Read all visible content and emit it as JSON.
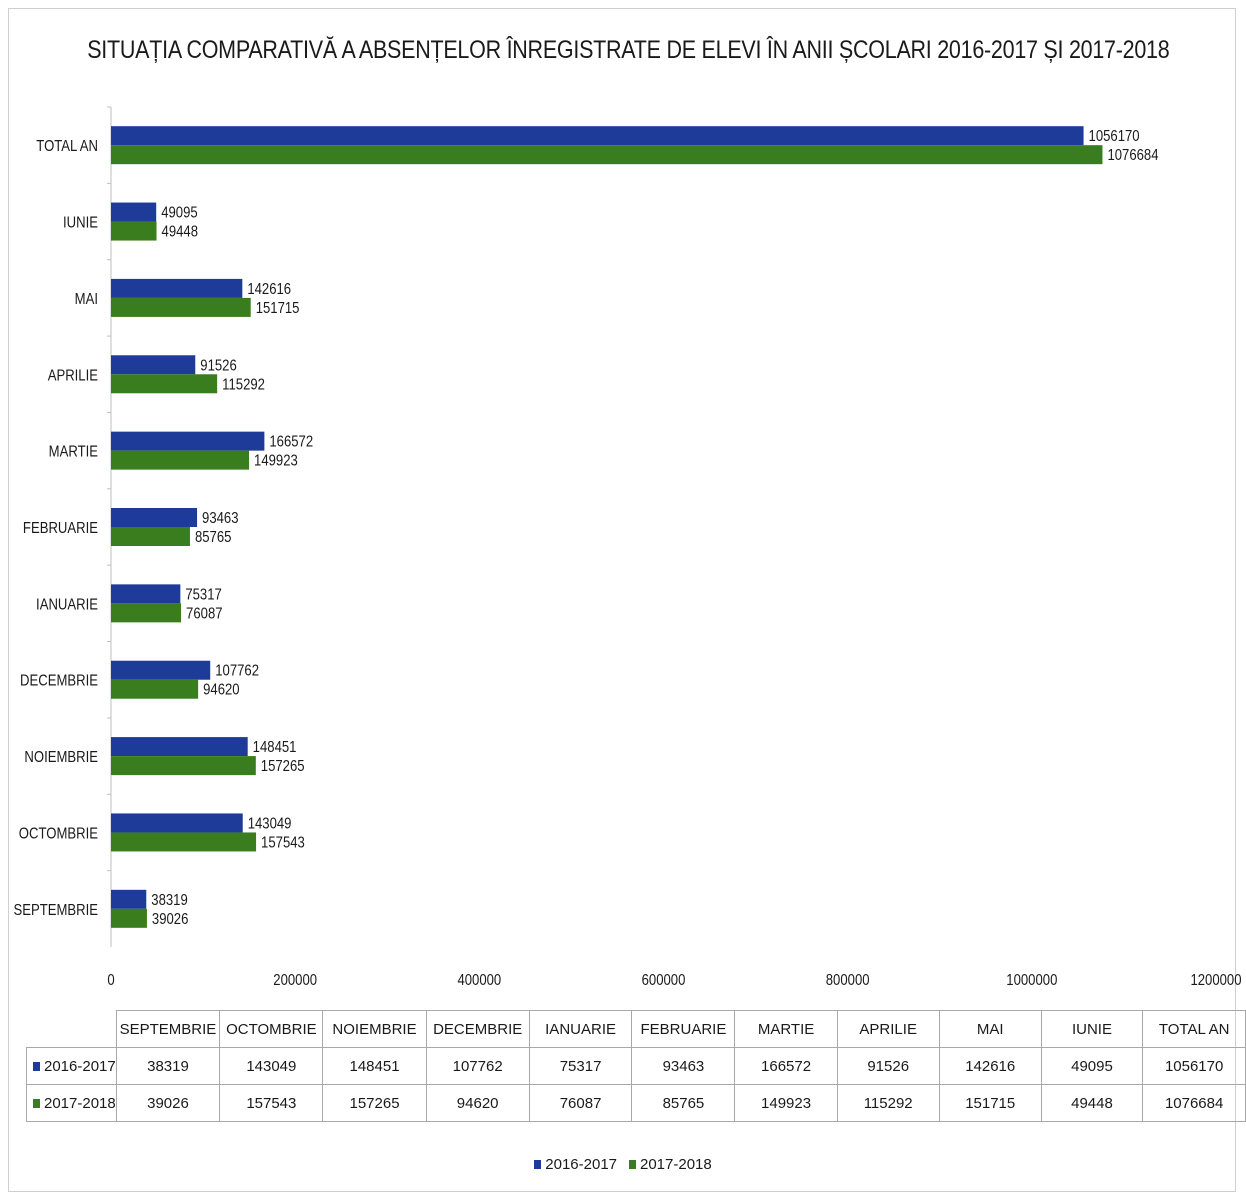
{
  "chart_data": {
    "type": "bar",
    "orientation": "horizontal",
    "title": "SITUAȚIA COMPARATIVĂ A ABSENȚELOR ÎNREGISTRATE DE ELEVI ÎN ANII ȘCOLARI 2016-2017 ȘI 2017-2018",
    "categories": [
      "SEPTEMBRIE",
      "OCTOMBRIE",
      "NOIEMBRIE",
      "DECEMBRIE",
      "IANUARIE",
      "FEBRUARIE",
      "MARTIE",
      "APRILIE",
      "MAI",
      "IUNIE",
      "TOTAL AN"
    ],
    "series": [
      {
        "name": "2016-2017",
        "color": "#1f3b9a",
        "values": [
          38319,
          143049,
          148451,
          107762,
          75317,
          93463,
          166572,
          91526,
          142616,
          49095,
          1056170
        ]
      },
      {
        "name": "2017-2018",
        "color": "#3a7d1e",
        "values": [
          39026,
          157543,
          157265,
          94620,
          76087,
          85765,
          149923,
          115292,
          151715,
          49448,
          1076684
        ]
      }
    ],
    "xlim": [
      0,
      1200000
    ],
    "xticks": [
      0,
      200000,
      400000,
      600000,
      800000,
      1000000,
      1200000
    ],
    "grid": false,
    "data_table": true,
    "legend_position": "bottom"
  }
}
